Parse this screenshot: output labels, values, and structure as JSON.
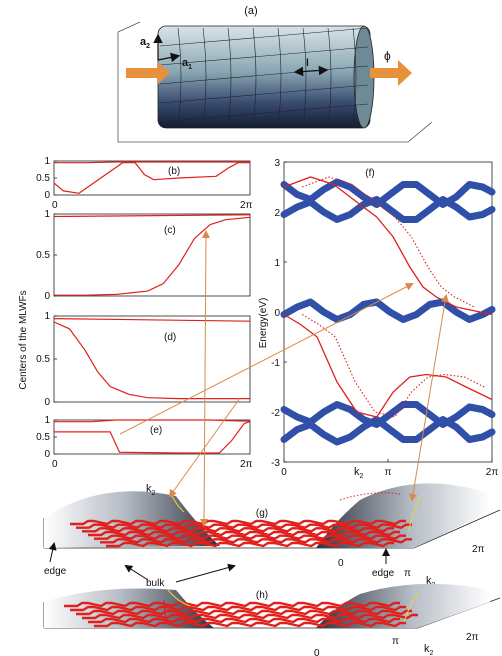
{
  "panel_labels": {
    "a": "(a)",
    "b": "(b)",
    "c": "(c)",
    "d": "(d)",
    "e": "(e)",
    "f": "(f)",
    "g": "(g)",
    "h": "(h)"
  },
  "cylinder": {
    "a2_label": "a",
    "a2_sub": "2",
    "a1_label": "a",
    "a1_sub": "1",
    "l_label": "l",
    "phi_label": "ϕ"
  },
  "left_panels": {
    "ylabel": "Centers of the MLWFs",
    "b_yticks": [
      "1",
      "0.5",
      "0"
    ],
    "c_yticks": [
      "1",
      "0.5",
      "0"
    ],
    "d_yticks": [
      "1",
      "0.5",
      "0"
    ],
    "e_yticks": [
      "1",
      "0.5",
      "0"
    ],
    "xtick_start": "0",
    "xtick_end": "2π"
  },
  "panel_f": {
    "ylabel": "Energy(eV)",
    "yticks": [
      "3",
      "2",
      "1",
      "0",
      "-1",
      "-2",
      "-3"
    ],
    "xticks": [
      "0",
      "π",
      "2π"
    ],
    "k2_label": "k",
    "k2_sub": "2"
  },
  "panel_g": {
    "k2_label": "k",
    "k2_sub": "2",
    "edge_left": "edge",
    "edge_right": "edge",
    "bulk": "bulk",
    "tick_0": "0",
    "tick_pi": "π",
    "tick_2pi": "2π",
    "axis_k2": "k",
    "axis_k2_sub": "2"
  },
  "panel_h": {
    "tick_0": "0",
    "tick_pi": "π",
    "tick_2pi": "2π",
    "axis_k2": "k",
    "axis_k2_sub": "2"
  },
  "chart_data": [
    {
      "type": "line",
      "panel": "(b)",
      "x_range": [
        0,
        6.283
      ],
      "ylim": [
        0,
        1
      ],
      "xticks": [
        "0",
        "2π"
      ],
      "series": [
        {
          "x": [
            0,
            0.3,
            0.8,
            2.2,
            2.6,
            2.9,
            3.2,
            4.0,
            5.2,
            5.6,
            5.9,
            6.283
          ],
          "values": [
            0.35,
            0.12,
            0.05,
            0.95,
            0.95,
            0.6,
            0.45,
            0.5,
            0.55,
            0.8,
            0.95,
            0.95
          ]
        },
        {
          "x": [
            0,
            1.0,
            2.0,
            6.283
          ],
          "values": [
            0.95,
            0.95,
            0.97,
            0.97
          ]
        }
      ]
    },
    {
      "type": "line",
      "panel": "(c)",
      "x_range": [
        0,
        6.283
      ],
      "ylim": [
        0,
        1
      ],
      "xticks": [
        "0",
        "2π"
      ],
      "series": [
        {
          "x": [
            0,
            1,
            2,
            3,
            3.5,
            4,
            4.5,
            5,
            5.5,
            6.283
          ],
          "values": [
            0.01,
            0.01,
            0.02,
            0.06,
            0.15,
            0.38,
            0.7,
            0.87,
            0.93,
            0.96
          ]
        },
        {
          "x": [
            0,
            6.283
          ],
          "values": [
            0.97,
            0.99
          ]
        }
      ]
    },
    {
      "type": "line",
      "panel": "(d)",
      "x_range": [
        0,
        6.283
      ],
      "ylim": [
        0,
        1
      ],
      "xticks": [
        "0",
        "2π"
      ],
      "series": [
        {
          "x": [
            0,
            0.5,
            1.0,
            1.4,
            1.8,
            2.4,
            3.0,
            4.0,
            6.283
          ],
          "values": [
            0.93,
            0.85,
            0.6,
            0.35,
            0.18,
            0.09,
            0.05,
            0.04,
            0.04
          ]
        },
        {
          "x": [
            0,
            6.283
          ],
          "values": [
            0.97,
            0.94
          ]
        }
      ]
    },
    {
      "type": "line",
      "panel": "(e)",
      "x_range": [
        0,
        6.283
      ],
      "ylim": [
        0,
        1
      ],
      "xticks": [
        "0",
        "2π"
      ],
      "series": [
        {
          "x": [
            0,
            1.2,
            1.7,
            2.0,
            4.0,
            5.0,
            5.6,
            6.0,
            6.283
          ],
          "values": [
            0.95,
            0.95,
            0.98,
            1.0,
            1.0,
            1.0,
            0.98,
            0.97,
            0.97
          ]
        },
        {
          "x": [
            0,
            1.8,
            2.1,
            4.0,
            5.3,
            5.7,
            6.1,
            6.283
          ],
          "values": [
            0.65,
            0.65,
            0.05,
            0.03,
            0.03,
            0.4,
            0.9,
            0.95
          ]
        }
      ]
    },
    {
      "type": "scatter",
      "panel": "(f)",
      "x_range": [
        0,
        6.283
      ],
      "ylim": [
        -3,
        3
      ],
      "ylabel": "Energy(eV)",
      "xticks": [
        "0",
        "π",
        "2π"
      ],
      "series": [
        {
          "x": [
            0,
            0.5,
            1.0,
            1.6,
            2.2,
            2.8,
            3.3,
            3.8,
            4.3,
            4.9,
            5.5,
            6.283
          ],
          "values": [
            -0.05,
            -0.25,
            -0.5,
            -1.4,
            -2.0,
            -2.1,
            -1.6,
            -1.3,
            -1.25,
            -1.3,
            -1.5,
            -1.75
          ]
        },
        {
          "x": [
            0,
            0.8,
            1.5,
            2.2,
            2.8,
            3.3,
            3.8,
            4.2,
            4.6,
            5.2,
            6.283
          ],
          "values": [
            2.5,
            2.7,
            2.55,
            2.2,
            1.9,
            1.5,
            0.9,
            0.5,
            0.3,
            0.1,
            -0.05
          ]
        },
        {
          "x": [
            0,
            0.4,
            0.8,
            1.2,
            1.6,
            2.0,
            2.4,
            2.8,
            3.2,
            3.6,
            4.0,
            4.4,
            4.8,
            5.2,
            5.6,
            6.0,
            6.283
          ],
          "values": [
            2.55,
            2.35,
            2.25,
            2.45,
            2.6,
            2.5,
            2.3,
            2.15,
            2.35,
            2.55,
            2.55,
            2.35,
            2.15,
            2.3,
            2.55,
            2.5,
            2.4
          ]
        },
        {
          "x": [
            0,
            0.4,
            0.8,
            1.2,
            1.6,
            2.0,
            2.4,
            2.8,
            3.2,
            3.6,
            4.0,
            4.4,
            4.8,
            5.2,
            5.6,
            6.0,
            6.283
          ],
          "values": [
            1.95,
            2.1,
            2.2,
            2.0,
            1.85,
            1.95,
            2.15,
            2.25,
            2.05,
            1.85,
            1.85,
            2.05,
            2.25,
            2.1,
            1.9,
            1.95,
            2.05
          ]
        },
        {
          "x": [
            0,
            0.4,
            0.8,
            1.2,
            1.6,
            2.0,
            2.4,
            2.8,
            3.2,
            3.6,
            4.0,
            4.4,
            4.8,
            5.2,
            5.6,
            6.0,
            6.283
          ],
          "values": [
            -0.05,
            0.1,
            0.2,
            0.0,
            -0.15,
            -0.05,
            0.15,
            0.2,
            0.0,
            -0.15,
            -0.05,
            0.15,
            0.2,
            0.0,
            -0.15,
            -0.05,
            0.05
          ]
        },
        {
          "x": [
            0,
            0.4,
            0.8,
            1.2,
            1.6,
            2.0,
            2.4,
            2.8,
            3.2,
            3.6,
            4.0,
            4.4,
            4.8,
            5.2,
            5.6,
            6.0,
            6.283
          ],
          "values": [
            -1.95,
            -2.1,
            -2.2,
            -2.0,
            -1.85,
            -1.95,
            -2.15,
            -2.25,
            -2.05,
            -1.85,
            -1.85,
            -2.05,
            -2.25,
            -2.1,
            -1.9,
            -1.95,
            -2.05
          ]
        },
        {
          "x": [
            0,
            0.4,
            0.8,
            1.2,
            1.6,
            2.0,
            2.4,
            2.8,
            3.2,
            3.6,
            4.0,
            4.4,
            4.8,
            5.2,
            5.6,
            6.0,
            6.283
          ],
          "values": [
            -2.55,
            -2.35,
            -2.25,
            -2.45,
            -2.6,
            -2.5,
            -2.3,
            -2.15,
            -2.35,
            -2.55,
            -2.55,
            -2.35,
            -2.15,
            -2.3,
            -2.55,
            -2.5,
            -2.4
          ]
        }
      ]
    }
  ],
  "colors": {
    "red_line": "#e0201c",
    "blue_band": "#2f4fa8",
    "orange_arrow": "#e8903a",
    "orange_line": "#d98a4a",
    "yellow_line": "#e6d93a"
  }
}
